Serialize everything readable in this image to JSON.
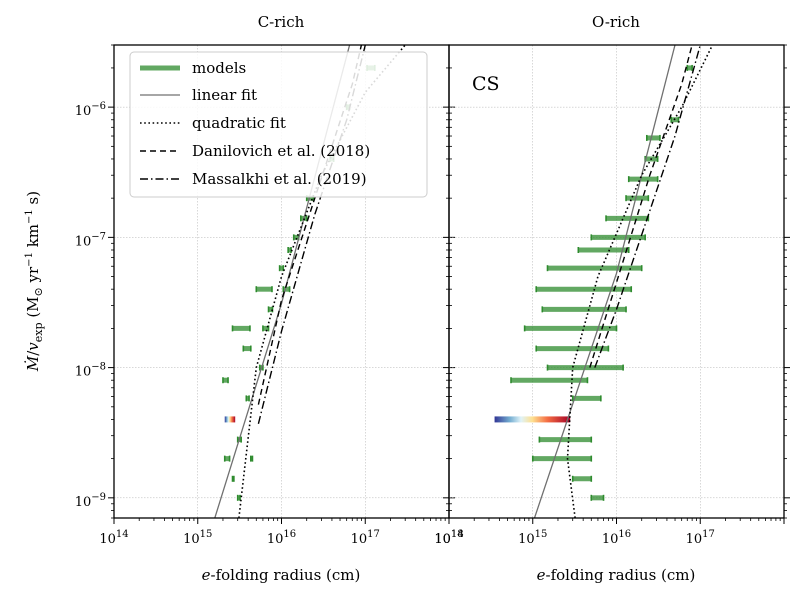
{
  "figure": {
    "ylabel": "Ṁ/v_exp (M⊙ yr⁻¹ km⁻¹ s)",
    "xlabel": "e-folding radius (cm)"
  },
  "legend": {
    "entries": [
      {
        "label": "models",
        "style": "thick-green"
      },
      {
        "label": "linear fit",
        "style": "solid-gray"
      },
      {
        "label": "quadratic fit",
        "style": "dotted"
      },
      {
        "label": "Danilovich et al. (2018)",
        "style": "dashed"
      },
      {
        "label": "Massalkhi et al. (2019)",
        "style": "dashdot"
      }
    ]
  },
  "colors": {
    "models": "#2e8b2e",
    "linear": "#707070",
    "quadratic": "#000000",
    "danilovich": "#000000",
    "massalkhi": "#000000"
  },
  "chart_data": [
    {
      "type": "scatter",
      "title": "C-rich",
      "xlabel": "e-folding radius (cm)",
      "ylabel": "Ṁ/v_exp (M⊙ yr⁻¹ km⁻¹ s)",
      "xscale": "log",
      "yscale": "log",
      "xlim": [
        100000000000000.0,
        1e+18
      ],
      "ylim": [
        7e-10,
        3e-06
      ],
      "x_tick_labels": [
        "10^14",
        "10^15",
        "10^16",
        "10^17",
        "10^18"
      ],
      "y_tick_labels": [
        "10^-9",
        "10^-8",
        "10^-7",
        "10^-6"
      ],
      "grid": true,
      "legend_position": "upper-left",
      "models": [
        {
          "y": 1e-09,
          "xmin": 3000000000000000.0,
          "xmax": 3200000000000000.0
        },
        {
          "y": 1.4e-09,
          "xmin": 2600000000000000.0,
          "xmax": 2700000000000000.0
        },
        {
          "y": 2e-09,
          "xmin": 2100000000000000.0,
          "xmax": 2400000000000000.0
        },
        {
          "y": 2e-09,
          "xmin": 4300000000000000.0,
          "xmax": 4500000000000000.0
        },
        {
          "y": 2.8e-09,
          "xmin": 3000000000000000.0,
          "xmax": 3300000000000000.0
        },
        {
          "y": 4e-09,
          "xmin": 2100000000000000.0,
          "xmax": 2800000000000000.0,
          "colored": true
        },
        {
          "y": 5.8e-09,
          "xmin": 3800000000000000.0,
          "xmax": 4100000000000000.0
        },
        {
          "y": 8e-09,
          "xmin": 2000000000000000.0,
          "xmax": 2300000000000000.0
        },
        {
          "y": 1e-08,
          "xmin": 5500000000000000.0,
          "xmax": 6000000000000000.0
        },
        {
          "y": 1.4e-08,
          "xmin": 3500000000000000.0,
          "xmax": 4300000000000000.0
        },
        {
          "y": 2e-08,
          "xmin": 2600000000000000.0,
          "xmax": 4200000000000000.0
        },
        {
          "y": 2e-08,
          "xmin": 6000000000000000.0,
          "xmax": 7000000000000000.0
        },
        {
          "y": 2.8e-08,
          "xmin": 7000000000000000.0,
          "xmax": 7800000000000000.0
        },
        {
          "y": 4e-08,
          "xmin": 5000000000000000.0,
          "xmax": 7700000000000000.0
        },
        {
          "y": 4e-08,
          "xmin": 1.05e+16,
          "xmax": 1.25e+16
        },
        {
          "y": 5.8e-08,
          "xmin": 9500000000000000.0,
          "xmax": 1.05e+16
        },
        {
          "y": 8e-08,
          "xmin": 1.2e+16,
          "xmax": 1.3e+16
        },
        {
          "y": 1e-07,
          "xmin": 1.4e+16,
          "xmax": 1.6e+16
        },
        {
          "y": 1.4e-07,
          "xmin": 1.7e+16,
          "xmax": 2e+16
        },
        {
          "y": 2e-07,
          "xmin": 2e+16,
          "xmax": 2.4e+16
        },
        {
          "y": 4e-07,
          "xmin": 3.8e+16,
          "xmax": 4.2e+16
        },
        {
          "y": 1e-06,
          "xmin": 6e+16,
          "xmax": 6.5e+16
        },
        {
          "y": 2e-06,
          "xmin": 1.05e+17,
          "xmax": 1.3e+17
        }
      ],
      "fits": {
        "linear": [
          [
            1600000000000000.0,
            7e-10
          ],
          [
            1e+16,
            3.1e-08
          ],
          [
            6.5e+16,
            3e-06
          ]
        ],
        "quadratic": [
          [
            3100000000000000.0,
            7e-10
          ],
          [
            5000000000000000.0,
            1e-08
          ],
          [
            1e+16,
            5e-08
          ],
          [
            3e+16,
            3e-07
          ],
          [
            1e+17,
            1.3e-06
          ],
          [
            3e+17,
            3e-06
          ]
        ],
        "danilovich": [
          [
            5300000000000000.0,
            5.2e-09
          ],
          [
            1e+16,
            3.3e-08
          ],
          [
            2.5e+16,
            2e-07
          ],
          [
            7e+16,
            1.5e-06
          ],
          [
            9e+16,
            3e-06
          ]
        ],
        "massalkhi": [
          [
            5300000000000000.0,
            3.7e-09
          ],
          [
            1e+16,
            1.9e-08
          ],
          [
            2.5e+16,
            1.5e-07
          ],
          [
            6e+16,
            8e-07
          ],
          [
            1e+17,
            3e-06
          ]
        ]
      }
    },
    {
      "type": "scatter",
      "title": "O-rich",
      "annotation": "CS",
      "xlabel": "e-folding radius (cm)",
      "xscale": "log",
      "yscale": "log",
      "xlim": [
        100000000000000.0,
        1e+18
      ],
      "ylim": [
        7e-10,
        3e-06
      ],
      "x_tick_labels": [
        "10^14",
        "10^15",
        "10^16",
        "10^17"
      ],
      "y_tick_labels": [
        "10^-9",
        "10^-8",
        "10^-7",
        "10^-6"
      ],
      "grid": true,
      "models": [
        {
          "y": 1e-09,
          "xmin": 5000000000000000.0,
          "xmax": 7000000000000000.0
        },
        {
          "y": 1.4e-09,
          "xmin": 3000000000000000.0,
          "xmax": 5000000000000000.0
        },
        {
          "y": 2e-09,
          "xmin": 1000000000000000.0,
          "xmax": 5000000000000000.0
        },
        {
          "y": 2.8e-09,
          "xmin": 1200000000000000.0,
          "xmax": 5000000000000000.0
        },
        {
          "y": 4e-09,
          "xmin": 350000000000000.0,
          "xmax": 2800000000000000.0,
          "colored": true
        },
        {
          "y": 5.8e-09,
          "xmin": 3000000000000000.0,
          "xmax": 6500000000000000.0
        },
        {
          "y": 8e-09,
          "xmin": 550000000000000.0,
          "xmax": 4500000000000000.0
        },
        {
          "y": 1e-08,
          "xmin": 1500000000000000.0,
          "xmax": 1.2e+16
        },
        {
          "y": 1.4e-08,
          "xmin": 1100000000000000.0,
          "xmax": 8000000000000000.0
        },
        {
          "y": 2e-08,
          "xmin": 800000000000000.0,
          "xmax": 1e+16
        },
        {
          "y": 2.8e-08,
          "xmin": 1300000000000000.0,
          "xmax": 1.3e+16
        },
        {
          "y": 4e-08,
          "xmin": 1100000000000000.0,
          "xmax": 1.5e+16
        },
        {
          "y": 5.8e-08,
          "xmin": 1500000000000000.0,
          "xmax": 2e+16
        },
        {
          "y": 8e-08,
          "xmin": 3500000000000000.0,
          "xmax": 1.4e+16
        },
        {
          "y": 1e-07,
          "xmin": 5000000000000000.0,
          "xmax": 2.2e+16
        },
        {
          "y": 1.4e-07,
          "xmin": 7500000000000000.0,
          "xmax": 2.4e+16
        },
        {
          "y": 2e-07,
          "xmin": 1.3e+16,
          "xmax": 2.4e+16
        },
        {
          "y": 2.8e-07,
          "xmin": 1.4e+16,
          "xmax": 3.1e+16
        },
        {
          "y": 4e-07,
          "xmin": 2.2e+16,
          "xmax": 3.1e+16
        },
        {
          "y": 5.8e-07,
          "xmin": 2.3e+16,
          "xmax": 3.3e+16
        },
        {
          "y": 8e-07,
          "xmin": 4.5e+16,
          "xmax": 5.5e+16
        },
        {
          "y": 2e-06,
          "xmin": 7e+16,
          "xmax": 8e+16
        }
      ],
      "fits": {
        "linear": [
          [
            1050000000000000.0,
            7e-10
          ],
          [
            1e+16,
            5.3e-08
          ],
          [
            5e+16,
            3e-06
          ]
        ],
        "quadratic": [
          [
            3200000000000000.0,
            7e-10
          ],
          [
            2600000000000000.0,
            2e-09
          ],
          [
            3000000000000000.0,
            1e-08
          ],
          [
            6000000000000000.0,
            5e-08
          ],
          [
            2e+16,
            3e-07
          ],
          [
            6e+16,
            1e-06
          ],
          [
            1.4e+17,
            3e-06
          ]
        ],
        "danilovich": [
          [
            4800000000000000.0,
            1e-08
          ],
          [
            1e+16,
            4.5e-08
          ],
          [
            2.5e+16,
            3e-07
          ],
          [
            6e+16,
            1.5e-06
          ],
          [
            8e+16,
            3e-06
          ]
        ],
        "massalkhi": [
          [
            5500000000000000.0,
            1e-08
          ],
          [
            1e+16,
            2.8e-08
          ],
          [
            2.5e+16,
            1.6e-07
          ],
          [
            5e+16,
            6e-07
          ],
          [
            1e+17,
            3e-06
          ]
        ]
      }
    }
  ]
}
